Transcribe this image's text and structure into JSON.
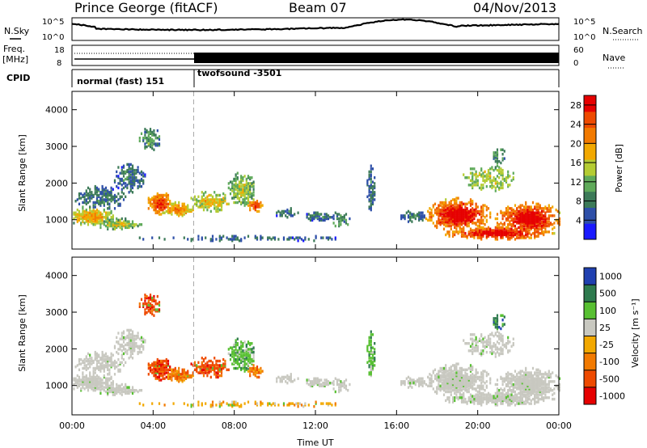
{
  "header": {
    "station": "Prince George (fitACF)",
    "beam": "Beam 07",
    "date": "04/Nov/2013"
  },
  "panels": {
    "nsky": {
      "label": "N.Sky",
      "right_label": "N.Search",
      "left_ticks": [
        "10^5",
        "10^0"
      ],
      "right_ticks": [
        "10^5",
        "10^0"
      ]
    },
    "freq": {
      "label": "Freq.",
      "unit": "[MHz]",
      "left_ticks": [
        "18",
        "8"
      ],
      "right_label": "Nave",
      "right_ticks": [
        "60",
        "0"
      ]
    },
    "cpid": {
      "label": "CPID",
      "modes": [
        "normal (fast) 151",
        "twofsound -3501"
      ]
    }
  },
  "colors": {
    "power": [
      "#1a1aff",
      "#2e4fa8",
      "#3c7a58",
      "#5faa5a",
      "#b4cc33",
      "#f2a800",
      "#f27a00",
      "#ee4a00",
      "#e60000"
    ],
    "velocity": [
      "#e60000",
      "#ee4a00",
      "#f27a00",
      "#f2a800",
      "#c8c8c0",
      "#58c032",
      "#2e7a4e",
      "#2040b0"
    ]
  },
  "chart_data": [
    {
      "type": "heatmap",
      "name": "power",
      "ylabel": "Slant Range [km]",
      "yticks": [
        "1000",
        "2000",
        "3000",
        "4000"
      ],
      "ylim": [
        200,
        4500
      ],
      "colorbar_label": "Power [dB]",
      "colorbar_ticks": [
        "4",
        "8",
        "12",
        "16",
        "20",
        "24",
        "28"
      ],
      "colorbar_range": [
        0,
        30
      ],
      "mode_change_hour": 6
    },
    {
      "type": "heatmap",
      "name": "velocity",
      "ylabel": "Slant Range [km]",
      "yticks": [
        "1000",
        "2000",
        "3000",
        "4000"
      ],
      "ylim": [
        200,
        4500
      ],
      "colorbar_label": "Velocity [m s⁻¹]",
      "colorbar_ticks": [
        "1000",
        "500",
        "100",
        "25",
        "-25",
        "-100",
        "-500",
        "-1000"
      ],
      "xlabel": "Time UT",
      "xticks": [
        "00:00",
        "04:00",
        "08:00",
        "12:00",
        "16:00",
        "20:00",
        "00:00"
      ],
      "xlim_hours": [
        0,
        24
      ],
      "mode_change_hour": 6
    }
  ]
}
